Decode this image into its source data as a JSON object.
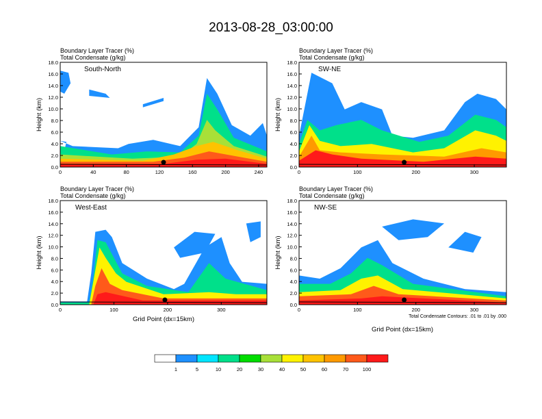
{
  "title": "2013-08-28_03:00:00",
  "header_line1": "Boundary Layer Tracer   (%)",
  "header_line2": "Total Condensate   (g/kg)",
  "ylabel": "Height (km)",
  "xlabel": "Grid Point (dx=15km)",
  "contour_note": "Total Condensate Contours: .01 to .01 by .000",
  "colorbar": {
    "colors": [
      "#ffffff",
      "#1e90ff",
      "#00e5ff",
      "#00e08a",
      "#00dd00",
      "#a8e038",
      "#fff200",
      "#ffc300",
      "#ff9a00",
      "#ff5a1a",
      "#ff1a1a"
    ],
    "labels": [
      "1",
      "5",
      "10",
      "20",
      "30",
      "40",
      "50",
      "60",
      "70",
      "100"
    ]
  },
  "chart_data": [
    {
      "type": "heatmap",
      "panel_label": "South-North",
      "xlim": [
        0,
        250
      ],
      "ylim": [
        0,
        18
      ],
      "xticks": [
        "0",
        "40",
        "80",
        "120",
        "160",
        "200",
        "240"
      ],
      "yticks": [
        "0.0",
        "2.0",
        "4.0",
        "6.0",
        "8.0",
        "10.0",
        "12.0",
        "14.0",
        "16.0",
        "18.0"
      ],
      "marker_x": 125
    },
    {
      "type": "heatmap",
      "panel_label": "SW-NE",
      "xlim": [
        0,
        355
      ],
      "ylim": [
        0,
        18
      ],
      "xticks": [
        "0",
        "100",
        "200",
        "300"
      ],
      "yticks": [
        "0.0",
        "2.0",
        "4.0",
        "6.0",
        "8.0",
        "10.0",
        "12.0",
        "14.0",
        "16.0",
        "18.0"
      ],
      "marker_x": 180
    },
    {
      "type": "heatmap",
      "panel_label": "West-East",
      "xlim": [
        0,
        385
      ],
      "ylim": [
        0,
        18
      ],
      "xticks": [
        "0",
        "100",
        "200",
        "300"
      ],
      "yticks": [
        "0.0",
        "2.0",
        "4.0",
        "6.0",
        "8.0",
        "10.0",
        "12.0",
        "14.0",
        "16.0",
        "18.0"
      ],
      "marker_x": 195
    },
    {
      "type": "heatmap",
      "panel_label": "NW-SE",
      "xlim": [
        0,
        355
      ],
      "ylim": [
        0,
        18
      ],
      "xticks": [
        "0",
        "100",
        "200",
        "300"
      ],
      "yticks": [
        "0.0",
        "2.0",
        "4.0",
        "6.0",
        "8.0",
        "10.0",
        "12.0",
        "14.0",
        "16.0",
        "18.0"
      ],
      "marker_x": 180
    }
  ]
}
